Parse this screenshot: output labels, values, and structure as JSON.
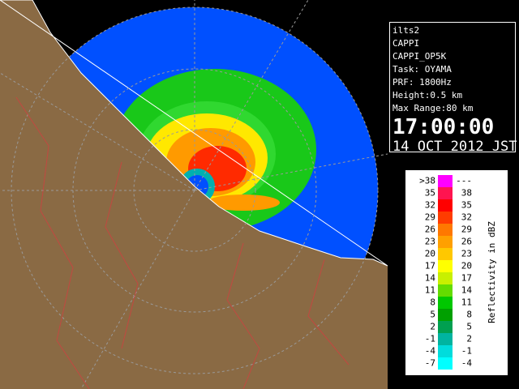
{
  "panel": {
    "lines": [
      "ilts2",
      "CAPPI",
      "CAPPI_OP5K",
      "Task: OYAMA",
      "PRF: 1800Hz",
      "Height:0.5 km",
      "Max Range:80 km"
    ],
    "time": "17:00:00",
    "date": "14 OCT 2012 JST"
  },
  "legend": {
    "title": "Reflectivity in dBZ",
    "rows": [
      {
        "low": ">38",
        "high": "---",
        "color": "#ff00ff"
      },
      {
        "low": "35",
        "high": "38",
        "color": "#ff1450"
      },
      {
        "low": "32",
        "high": "35",
        "color": "#ff0000"
      },
      {
        "low": "29",
        "high": "32",
        "color": "#ff3c00"
      },
      {
        "low": "26",
        "high": "29",
        "color": "#ff7800"
      },
      {
        "low": "23",
        "high": "26",
        "color": "#ffa000"
      },
      {
        "low": "20",
        "high": "23",
        "color": "#ffc800"
      },
      {
        "low": "17",
        "high": "20",
        "color": "#ffff00"
      },
      {
        "low": "14",
        "high": "17",
        "color": "#c8f000"
      },
      {
        "low": "11",
        "high": "14",
        "color": "#64dc00"
      },
      {
        "low": "8",
        "high": "11",
        "color": "#00c800"
      },
      {
        "low": "5",
        "high": "8",
        "color": "#00a000"
      },
      {
        "low": "2",
        "high": "5",
        "color": "#00a050"
      },
      {
        "low": "-1",
        "high": "2",
        "color": "#00b4a0"
      },
      {
        "low": "-4",
        "high": "-1",
        "color": "#00dcdc"
      },
      {
        "low": "-7",
        "high": "-4",
        "color": "#00ffff"
      }
    ]
  }
}
